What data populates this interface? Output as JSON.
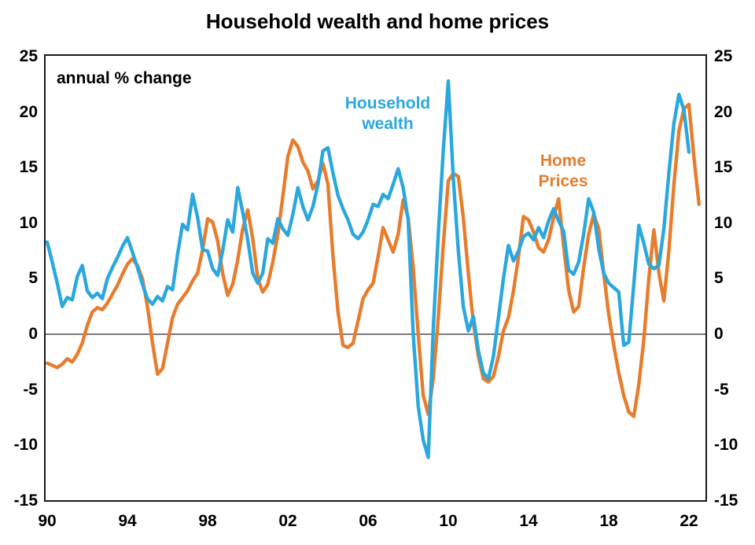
{
  "chart_data": {
    "type": "line",
    "title": "Household wealth and home prices",
    "annotation": "annual % change",
    "legend_position": "inline-labels",
    "grid": "zero-line-only",
    "colors": {
      "wealth": "#29A7DE",
      "home_prices": "#E77C2C",
      "axis": "#000000",
      "zero_line": "#4d4d4d"
    },
    "x_axis": {
      "tick_labels": [
        "90",
        "94",
        "98",
        "02",
        "06",
        "10",
        "14",
        "18",
        "22"
      ],
      "tick_years": [
        1990,
        1994,
        1998,
        2002,
        2006,
        2010,
        2014,
        2018,
        2022
      ],
      "range_years": [
        1989.9,
        2022.9
      ]
    },
    "y_axis": {
      "tick_values": [
        25,
        20,
        15,
        10,
        5,
        0,
        -5,
        -10,
        -15
      ],
      "min": -15,
      "max": 25,
      "mirrored_right": true
    },
    "series": [
      {
        "name": "Household wealth",
        "label_lines": [
          "Household",
          "wealth"
        ],
        "color": "#29A7DE",
        "x_start": 1990.0,
        "x_step": 0.25,
        "values": [
          8.3,
          6.5,
          4.6,
          2.5,
          3.3,
          3.1,
          5.2,
          6.2,
          3.9,
          3.3,
          3.7,
          3.2,
          5.0,
          6.0,
          6.9,
          7.9,
          8.7,
          7.4,
          6.0,
          4.5,
          3.2,
          2.7,
          3.4,
          3.0,
          4.3,
          4.0,
          7.2,
          9.9,
          9.4,
          12.6,
          10.5,
          7.6,
          7.5,
          5.9,
          5.3,
          7.5,
          10.3,
          9.2,
          13.2,
          11.0,
          8.5,
          5.5,
          4.6,
          5.5,
          8.6,
          8.2,
          10.4,
          9.5,
          8.9,
          10.8,
          13.2,
          11.5,
          10.3,
          11.5,
          13.5,
          16.5,
          16.8,
          14.5,
          12.5,
          11.3,
          10.3,
          9.0,
          8.6,
          9.2,
          10.3,
          11.7,
          11.5,
          12.6,
          12.2,
          13.5,
          14.9,
          13.2,
          10.3,
          0.0,
          -6.5,
          -9.5,
          -11.1,
          0.5,
          9.0,
          16.5,
          22.8,
          14.0,
          7.5,
          2.5,
          0.3,
          1.6,
          -1.5,
          -3.5,
          -4.0,
          -2.0,
          1.5,
          5.0,
          8.0,
          6.6,
          7.5,
          8.8,
          9.1,
          8.5,
          9.6,
          8.7,
          10.2,
          11.3,
          10.2,
          9.3,
          5.8,
          5.4,
          6.5,
          9.0,
          12.2,
          11.0,
          7.7,
          5.5,
          4.6,
          4.2,
          3.8,
          -1.0,
          -0.7,
          4.5,
          9.8,
          8.2,
          6.3,
          5.9,
          6.2,
          9.5,
          14.5,
          19.0,
          21.6,
          20.2,
          16.4
        ]
      },
      {
        "name": "Home Prices",
        "label_lines": [
          "Home",
          "Prices"
        ],
        "color": "#E77C2C",
        "x_start": 1990.0,
        "x_step": 0.25,
        "values": [
          -2.6,
          -2.8,
          -3.0,
          -2.7,
          -2.2,
          -2.5,
          -1.8,
          -0.8,
          0.8,
          2.0,
          2.4,
          2.2,
          2.8,
          3.6,
          4.4,
          5.4,
          6.3,
          6.8,
          6.2,
          5.0,
          2.5,
          -0.8,
          -3.6,
          -3.1,
          -0.8,
          1.5,
          2.7,
          3.3,
          3.9,
          4.8,
          5.5,
          7.6,
          10.4,
          10.1,
          8.4,
          5.5,
          3.5,
          4.5,
          6.7,
          9.5,
          11.2,
          8.6,
          5.0,
          3.8,
          4.5,
          6.5,
          9.0,
          12.4,
          16.0,
          17.5,
          16.9,
          15.5,
          14.7,
          13.1,
          13.8,
          15.4,
          13.5,
          7.0,
          2.0,
          -1.0,
          -1.2,
          -0.8,
          1.2,
          3.2,
          4.0,
          4.6,
          7.0,
          9.6,
          8.5,
          7.4,
          9.0,
          12.1,
          10.5,
          6.0,
          0.0,
          -5.5,
          -7.2,
          -4.0,
          1.5,
          8.0,
          13.8,
          14.5,
          14.2,
          10.5,
          5.5,
          1.0,
          -2.0,
          -4.0,
          -4.3,
          -3.8,
          -2.0,
          0.3,
          1.5,
          3.9,
          7.0,
          10.6,
          10.3,
          9.2,
          7.8,
          7.4,
          8.5,
          10.5,
          12.2,
          8.0,
          4.0,
          2.0,
          2.5,
          6.0,
          9.0,
          10.8,
          9.5,
          5.5,
          1.8,
          -1.0,
          -3.5,
          -5.5,
          -7.0,
          -7.4,
          -4.5,
          -0.5,
          5.0,
          9.4,
          5.5,
          3.0,
          7.5,
          13.5,
          18.3,
          20.3,
          20.7,
          15.9,
          11.7
        ]
      }
    ]
  }
}
